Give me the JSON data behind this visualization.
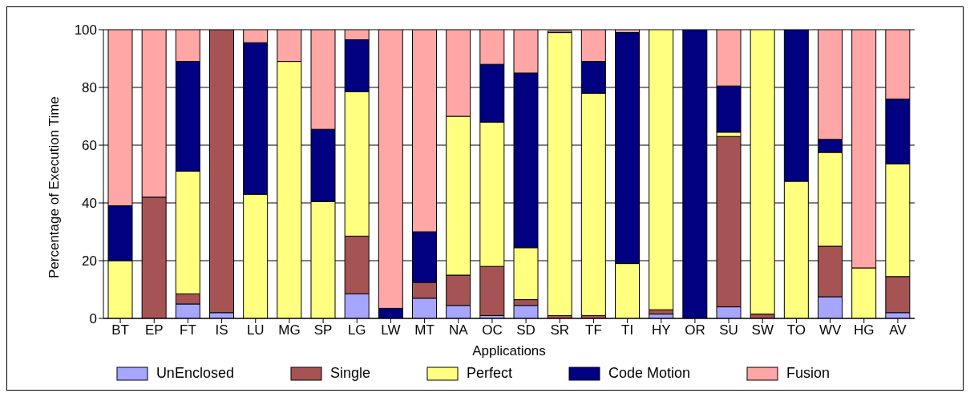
{
  "chart_data": {
    "type": "bar",
    "stacked": true,
    "xlabel": "Applications",
    "ylabel": "Percentage of Execution Time",
    "categories": [
      "BT",
      "EP",
      "FT",
      "IS",
      "LU",
      "MG",
      "SP",
      "LG",
      "LW",
      "MT",
      "NA",
      "OC",
      "SD",
      "SR",
      "TF",
      "TI",
      "HY",
      "OR",
      "SU",
      "SW",
      "TO",
      "WV",
      "HG",
      "AV"
    ],
    "series": [
      {
        "name": "UnEnclosed",
        "color": "#a6a6ff",
        "values": [
          0,
          0,
          5,
          2,
          0,
          0,
          0,
          8.5,
          0,
          7,
          4.5,
          1,
          4.5,
          null,
          0,
          0,
          1.5,
          0,
          4,
          0,
          0,
          7.5,
          0,
          2
        ]
      },
      {
        "name": "Single",
        "color": "#a65353",
        "values": [
          0,
          42,
          3.5,
          98,
          0,
          0,
          0,
          20,
          0,
          5.5,
          10.5,
          17,
          2,
          1,
          1,
          0,
          1.5,
          0,
          59,
          1.5,
          0,
          17.5,
          0,
          12.5
        ]
      },
      {
        "name": "Perfect",
        "color": "#ffff80",
        "values": [
          20,
          0,
          42.5,
          0,
          43,
          89,
          40.5,
          50,
          0,
          0,
          55,
          50,
          18,
          98,
          77,
          19,
          97,
          0,
          1.5,
          98.5,
          47.5,
          32.5,
          17.5,
          39
        ]
      },
      {
        "name": "Code Motion",
        "color": "#000080",
        "values": [
          19,
          0,
          38,
          0,
          52.5,
          0,
          25,
          18,
          3.5,
          17.5,
          0,
          20,
          60.5,
          0,
          11,
          80,
          0,
          100,
          16,
          0,
          52.5,
          4.5,
          0,
          22.5
        ]
      },
      {
        "name": "Fusion",
        "color": "#ffa6a6",
        "values": [
          61,
          58,
          11,
          0,
          4.5,
          11,
          34.5,
          3.5,
          96.5,
          70,
          30,
          12,
          15,
          0.5,
          11,
          1,
          0,
          0,
          19.5,
          0,
          0,
          38,
          82.5,
          24
        ]
      }
    ],
    "ylim": [
      0,
      100
    ],
    "yticks": [
      0,
      20,
      40,
      60,
      80,
      100
    ],
    "grid": "y",
    "legend": "bottom"
  }
}
